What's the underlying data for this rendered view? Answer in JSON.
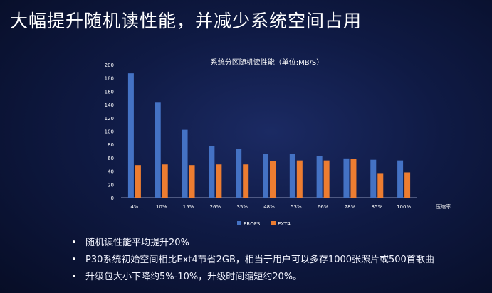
{
  "slide": {
    "title": "大幅提升随机读性能，并减少系统空间占用"
  },
  "chart_data": {
    "type": "bar",
    "title": "系统分区随机读性能（单位:MB/S）",
    "xlabel": "压缩率",
    "ylabel": "",
    "categories": [
      "4%",
      "10%",
      "15%",
      "26%",
      "35%",
      "48%",
      "53%",
      "66%",
      "78%",
      "85%",
      "100%"
    ],
    "series": [
      {
        "name": "EROFS",
        "color": "#4472c4",
        "values": [
          187,
          143,
          102,
          78,
          73,
          66,
          66,
          63,
          59,
          57,
          56
        ]
      },
      {
        "name": "EXT4",
        "color": "#ed7d31",
        "values": [
          49,
          50,
          49,
          50,
          50,
          55,
          56,
          56,
          58,
          37,
          38
        ]
      }
    ],
    "ylim": [
      0,
      200
    ],
    "yticks": [
      0,
      20,
      40,
      60,
      80,
      100,
      120,
      140,
      160,
      180,
      200
    ],
    "grid": false,
    "legend": "bottom"
  },
  "bullets": [
    "随机读性能平均提升20%",
    "P30系统初始空间相比Ext4节省2GB，相当于用户可以多存1000张照片或500首歌曲",
    "升级包大小下降约5%-10%，升级时间缩短约20%。"
  ],
  "bullet_glyph": "•"
}
